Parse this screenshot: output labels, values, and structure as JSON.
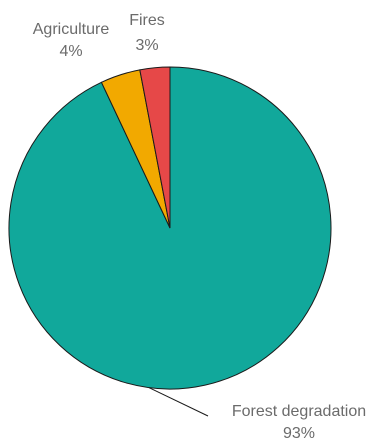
{
  "chart_data": {
    "type": "pie",
    "title": "",
    "slices": [
      {
        "label": "Forest degradation",
        "value": 93,
        "value_label": "93%",
        "color": "#11a89b"
      },
      {
        "label": "Agriculture",
        "value": 4,
        "value_label": "4%",
        "color": "#f2a900"
      },
      {
        "label": "Fires",
        "value": 3,
        "value_label": "3%",
        "color": "#e64848"
      }
    ],
    "start_angle": "12 o'clock",
    "direction": "clockwise",
    "legend": "none"
  }
}
